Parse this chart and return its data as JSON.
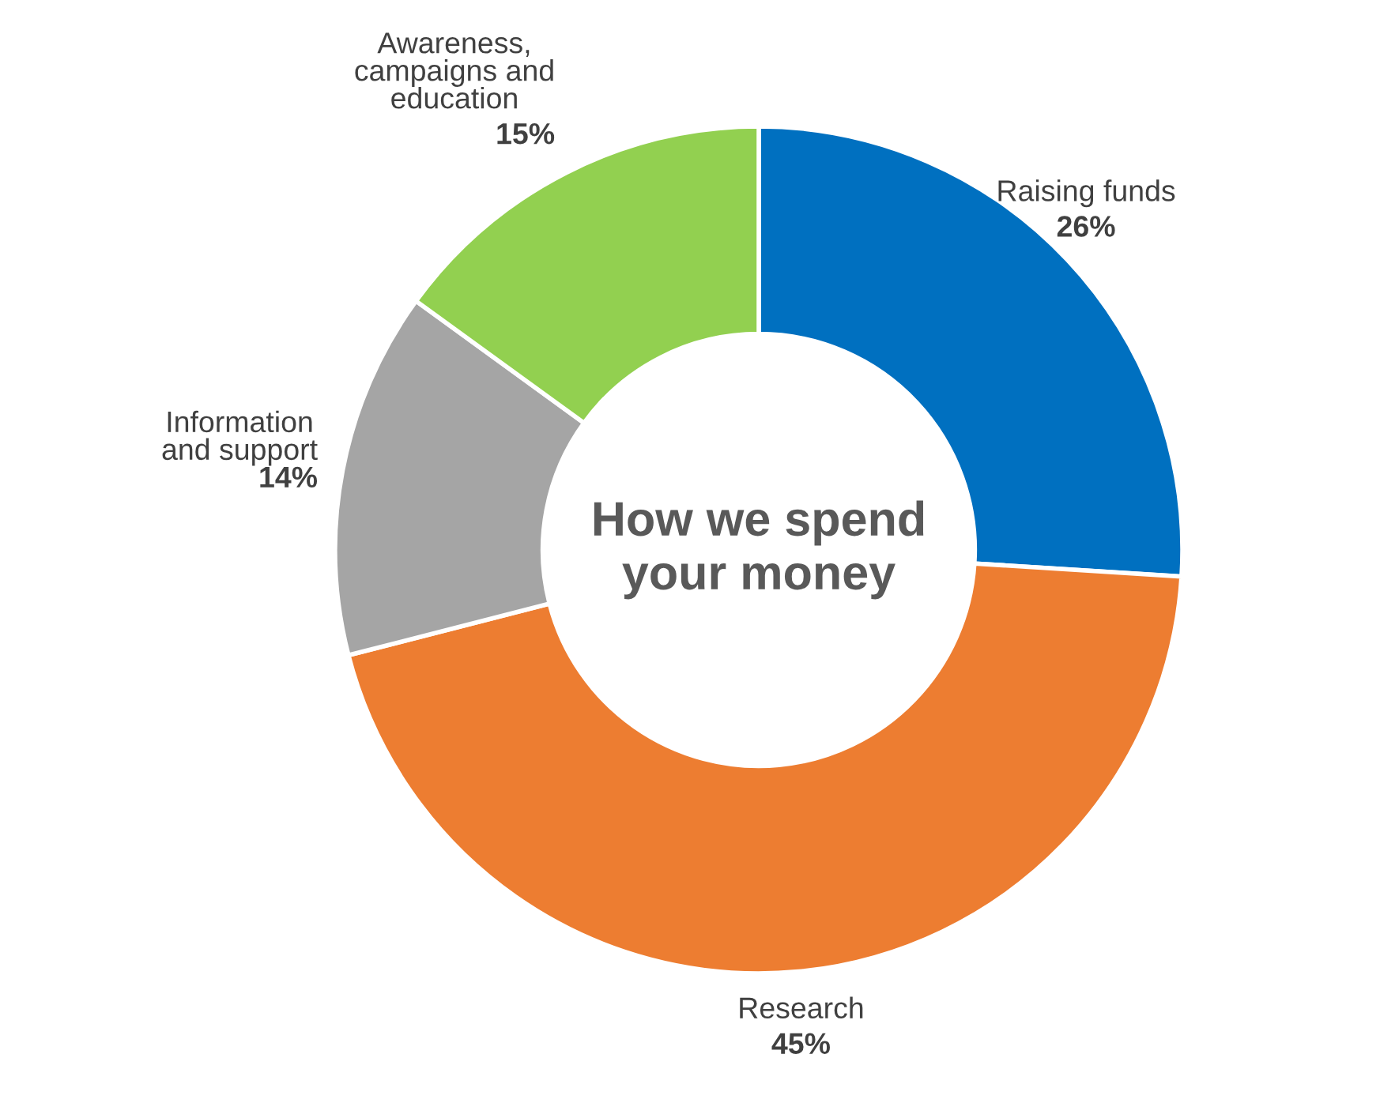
{
  "chart_data": {
    "type": "donut",
    "title": "How we spend\nyour money",
    "categories": [
      "Raising funds",
      "Research",
      "Information\nand support",
      "Awareness,\ncampaigns and\neducation"
    ],
    "values": [
      26,
      45,
      14,
      15
    ],
    "value_labels": [
      "26%",
      "45%",
      "14%",
      "15%"
    ],
    "colors": [
      "#0070c0",
      "#ed7d31",
      "#a5a5a5",
      "#92d050"
    ]
  }
}
